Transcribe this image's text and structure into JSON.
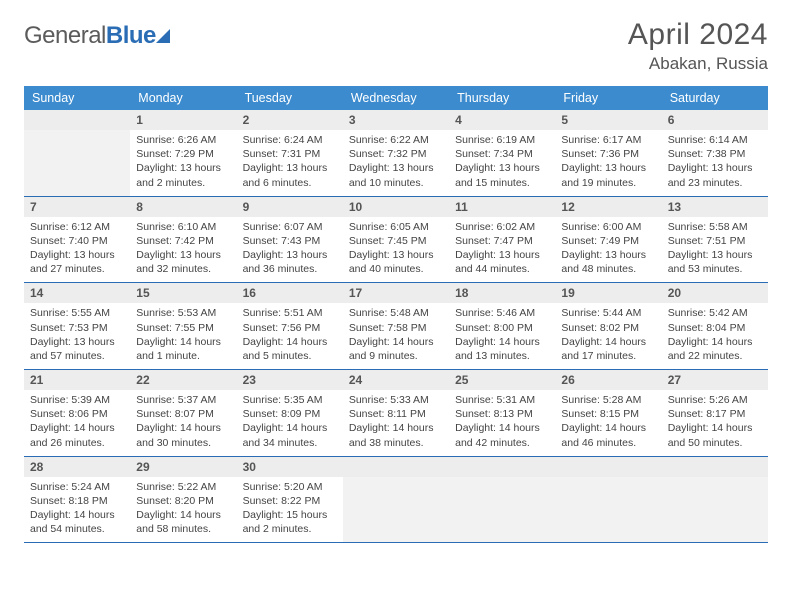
{
  "logo": {
    "text1": "General",
    "text2": "Blue"
  },
  "header": {
    "month_title": "April 2024",
    "location": "Abakan, Russia"
  },
  "columns": [
    "Sunday",
    "Monday",
    "Tuesday",
    "Wednesday",
    "Thursday",
    "Friday",
    "Saturday"
  ],
  "weeks": [
    [
      null,
      {
        "n": "1",
        "sr": "Sunrise: 6:26 AM",
        "ss": "Sunset: 7:29 PM",
        "dl": "Daylight: 13 hours and 2 minutes."
      },
      {
        "n": "2",
        "sr": "Sunrise: 6:24 AM",
        "ss": "Sunset: 7:31 PM",
        "dl": "Daylight: 13 hours and 6 minutes."
      },
      {
        "n": "3",
        "sr": "Sunrise: 6:22 AM",
        "ss": "Sunset: 7:32 PM",
        "dl": "Daylight: 13 hours and 10 minutes."
      },
      {
        "n": "4",
        "sr": "Sunrise: 6:19 AM",
        "ss": "Sunset: 7:34 PM",
        "dl": "Daylight: 13 hours and 15 minutes."
      },
      {
        "n": "5",
        "sr": "Sunrise: 6:17 AM",
        "ss": "Sunset: 7:36 PM",
        "dl": "Daylight: 13 hours and 19 minutes."
      },
      {
        "n": "6",
        "sr": "Sunrise: 6:14 AM",
        "ss": "Sunset: 7:38 PM",
        "dl": "Daylight: 13 hours and 23 minutes."
      }
    ],
    [
      {
        "n": "7",
        "sr": "Sunrise: 6:12 AM",
        "ss": "Sunset: 7:40 PM",
        "dl": "Daylight: 13 hours and 27 minutes."
      },
      {
        "n": "8",
        "sr": "Sunrise: 6:10 AM",
        "ss": "Sunset: 7:42 PM",
        "dl": "Daylight: 13 hours and 32 minutes."
      },
      {
        "n": "9",
        "sr": "Sunrise: 6:07 AM",
        "ss": "Sunset: 7:43 PM",
        "dl": "Daylight: 13 hours and 36 minutes."
      },
      {
        "n": "10",
        "sr": "Sunrise: 6:05 AM",
        "ss": "Sunset: 7:45 PM",
        "dl": "Daylight: 13 hours and 40 minutes."
      },
      {
        "n": "11",
        "sr": "Sunrise: 6:02 AM",
        "ss": "Sunset: 7:47 PM",
        "dl": "Daylight: 13 hours and 44 minutes."
      },
      {
        "n": "12",
        "sr": "Sunrise: 6:00 AM",
        "ss": "Sunset: 7:49 PM",
        "dl": "Daylight: 13 hours and 48 minutes."
      },
      {
        "n": "13",
        "sr": "Sunrise: 5:58 AM",
        "ss": "Sunset: 7:51 PM",
        "dl": "Daylight: 13 hours and 53 minutes."
      }
    ],
    [
      {
        "n": "14",
        "sr": "Sunrise: 5:55 AM",
        "ss": "Sunset: 7:53 PM",
        "dl": "Daylight: 13 hours and 57 minutes."
      },
      {
        "n": "15",
        "sr": "Sunrise: 5:53 AM",
        "ss": "Sunset: 7:55 PM",
        "dl": "Daylight: 14 hours and 1 minute."
      },
      {
        "n": "16",
        "sr": "Sunrise: 5:51 AM",
        "ss": "Sunset: 7:56 PM",
        "dl": "Daylight: 14 hours and 5 minutes."
      },
      {
        "n": "17",
        "sr": "Sunrise: 5:48 AM",
        "ss": "Sunset: 7:58 PM",
        "dl": "Daylight: 14 hours and 9 minutes."
      },
      {
        "n": "18",
        "sr": "Sunrise: 5:46 AM",
        "ss": "Sunset: 8:00 PM",
        "dl": "Daylight: 14 hours and 13 minutes."
      },
      {
        "n": "19",
        "sr": "Sunrise: 5:44 AM",
        "ss": "Sunset: 8:02 PM",
        "dl": "Daylight: 14 hours and 17 minutes."
      },
      {
        "n": "20",
        "sr": "Sunrise: 5:42 AM",
        "ss": "Sunset: 8:04 PM",
        "dl": "Daylight: 14 hours and 22 minutes."
      }
    ],
    [
      {
        "n": "21",
        "sr": "Sunrise: 5:39 AM",
        "ss": "Sunset: 8:06 PM",
        "dl": "Daylight: 14 hours and 26 minutes."
      },
      {
        "n": "22",
        "sr": "Sunrise: 5:37 AM",
        "ss": "Sunset: 8:07 PM",
        "dl": "Daylight: 14 hours and 30 minutes."
      },
      {
        "n": "23",
        "sr": "Sunrise: 5:35 AM",
        "ss": "Sunset: 8:09 PM",
        "dl": "Daylight: 14 hours and 34 minutes."
      },
      {
        "n": "24",
        "sr": "Sunrise: 5:33 AM",
        "ss": "Sunset: 8:11 PM",
        "dl": "Daylight: 14 hours and 38 minutes."
      },
      {
        "n": "25",
        "sr": "Sunrise: 5:31 AM",
        "ss": "Sunset: 8:13 PM",
        "dl": "Daylight: 14 hours and 42 minutes."
      },
      {
        "n": "26",
        "sr": "Sunrise: 5:28 AM",
        "ss": "Sunset: 8:15 PM",
        "dl": "Daylight: 14 hours and 46 minutes."
      },
      {
        "n": "27",
        "sr": "Sunrise: 5:26 AM",
        "ss": "Sunset: 8:17 PM",
        "dl": "Daylight: 14 hours and 50 minutes."
      }
    ],
    [
      {
        "n": "28",
        "sr": "Sunrise: 5:24 AM",
        "ss": "Sunset: 8:18 PM",
        "dl": "Daylight: 14 hours and 54 minutes."
      },
      {
        "n": "29",
        "sr": "Sunrise: 5:22 AM",
        "ss": "Sunset: 8:20 PM",
        "dl": "Daylight: 14 hours and 58 minutes."
      },
      {
        "n": "30",
        "sr": "Sunrise: 5:20 AM",
        "ss": "Sunset: 8:22 PM",
        "dl": "Daylight: 15 hours and 2 minutes."
      },
      null,
      null,
      null,
      null
    ]
  ]
}
